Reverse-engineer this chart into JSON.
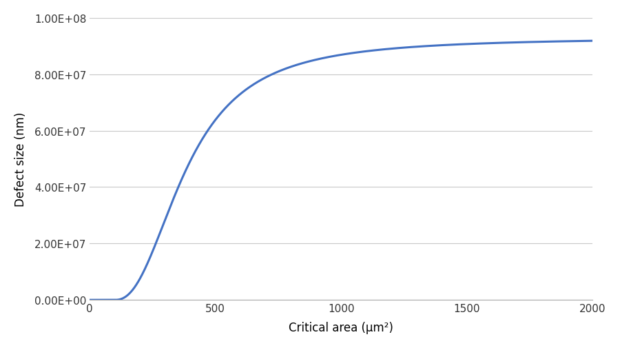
{
  "xlabel": "Critical area (μm²)",
  "ylabel": "Defect size (nm)",
  "xlim": [
    0,
    2000
  ],
  "ylim": [
    0,
    100000000.0
  ],
  "xticks": [
    0,
    500,
    1000,
    1500,
    2000
  ],
  "yticks": [
    0,
    20000000.0,
    40000000.0,
    60000000.0,
    80000000.0,
    100000000.0
  ],
  "ytick_labels": [
    "0.00E+00",
    "2.00E+07",
    "4.00E+07",
    "6.00E+07",
    "8.00E+07",
    "1.00E+08"
  ],
  "line_color": "#4472C4",
  "line_width": 2.2,
  "background_color": "#ffffff",
  "curve_asymptote": 93000000.0,
  "curve_k": 0.012,
  "curve_x0": 100,
  "curve_flat_end": 100,
  "grid_color": "#c8c8c8",
  "xlabel_fontsize": 12,
  "ylabel_fontsize": 12,
  "tick_fontsize": 11
}
